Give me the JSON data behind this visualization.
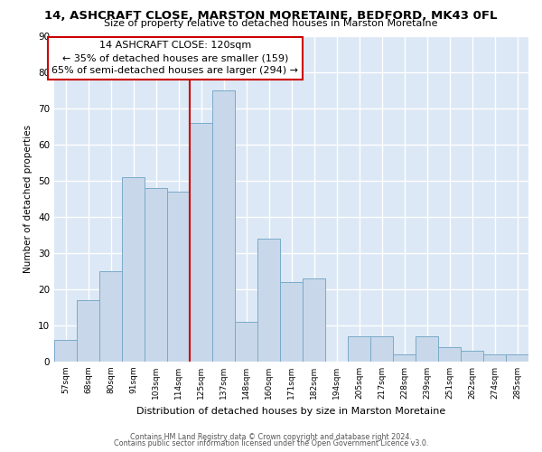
{
  "title1": "14, ASHCRAFT CLOSE, MARSTON MORETAINE, BEDFORD, MK43 0FL",
  "title2": "Size of property relative to detached houses in Marston Moretaine",
  "xlabel": "Distribution of detached houses by size in Marston Moretaine",
  "ylabel": "Number of detached properties",
  "bar_labels": [
    "57sqm",
    "68sqm",
    "80sqm",
    "91sqm",
    "103sqm",
    "114sqm",
    "125sqm",
    "137sqm",
    "148sqm",
    "160sqm",
    "171sqm",
    "182sqm",
    "194sqm",
    "205sqm",
    "217sqm",
    "228sqm",
    "239sqm",
    "251sqm",
    "262sqm",
    "274sqm",
    "285sqm"
  ],
  "bar_values": [
    6,
    17,
    25,
    51,
    48,
    47,
    66,
    75,
    11,
    34,
    22,
    23,
    0,
    7,
    7,
    2,
    7,
    4,
    3,
    2,
    2
  ],
  "bar_color": "#c8d8ea",
  "bar_edge_color": "#7aaac8",
  "vline_x": 5.5,
  "vline_color": "#cc0000",
  "annotation_title": "14 ASHCRAFT CLOSE: 120sqm",
  "annotation_line1": "← 35% of detached houses are smaller (159)",
  "annotation_line2": "65% of semi-detached houses are larger (294) →",
  "footer1": "Contains HM Land Registry data © Crown copyright and database right 2024.",
  "footer2": "Contains public sector information licensed under the Open Government Licence v3.0.",
  "ylim": [
    0,
    90
  ],
  "yticks": [
    0,
    10,
    20,
    30,
    40,
    50,
    60,
    70,
    80,
    90
  ],
  "plot_bg_color": "#dce8f5"
}
